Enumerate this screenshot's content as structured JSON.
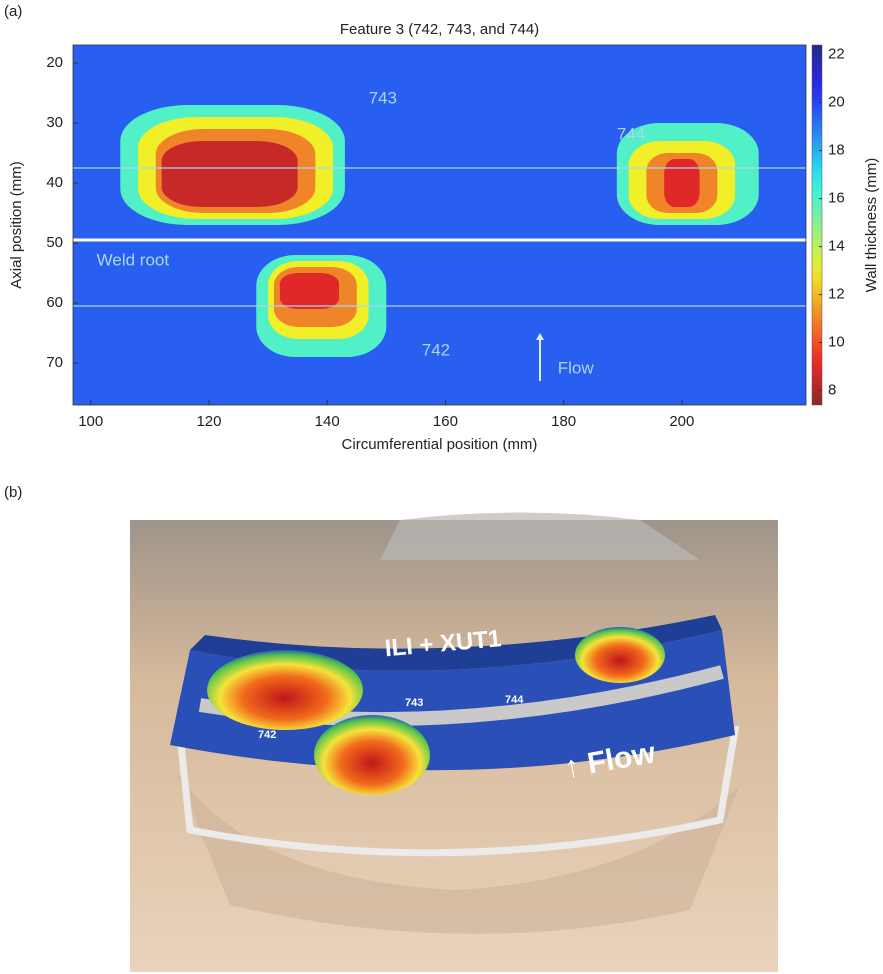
{
  "panel_labels": [
    "(a)",
    "(b)"
  ],
  "chart_data": {
    "type": "heatmap",
    "title": "Feature 3 (742, 743, and 744)",
    "x_label": "Circumferential position (mm)",
    "y_label": "Axial position (mm)",
    "xlim": [
      97,
      221
    ],
    "xticks": [
      100,
      120,
      140,
      160,
      180,
      200
    ],
    "ylim": [
      77,
      17
    ],
    "yticks": [
      20,
      30,
      40,
      50,
      60,
      70
    ],
    "colormap": "jet-reversed",
    "colorbar_label": "Wall thickness (mm)",
    "clim": [
      7.4,
      22.4
    ],
    "cticks": [
      8,
      10,
      12,
      14,
      16,
      18,
      20,
      22
    ],
    "background": 19.5,
    "regions": [
      {
        "x": [
          105,
          143
        ],
        "y": [
          27,
          47
        ],
        "value": 16
      },
      {
        "x": [
          108,
          141
        ],
        "y": [
          29,
          46
        ],
        "value": 13
      },
      {
        "x": [
          111,
          138
        ],
        "y": [
          31,
          45
        ],
        "value": 11
      },
      {
        "x": [
          112,
          135
        ],
        "y": [
          33,
          44
        ],
        "value": 8.5
      },
      {
        "x": [
          189,
          213
        ],
        "y": [
          30,
          47
        ],
        "value": 16
      },
      {
        "x": [
          191,
          209
        ],
        "y": [
          33,
          46
        ],
        "value": 13
      },
      {
        "x": [
          194,
          206
        ],
        "y": [
          35,
          45
        ],
        "value": 11
      },
      {
        "x": [
          197,
          203
        ],
        "y": [
          36,
          44
        ],
        "value": 9
      },
      {
        "x": [
          128,
          150
        ],
        "y": [
          52,
          69
        ],
        "value": 16
      },
      {
        "x": [
          130,
          147
        ],
        "y": [
          53,
          66
        ],
        "value": 13
      },
      {
        "x": [
          131,
          145
        ],
        "y": [
          54,
          64
        ],
        "value": 11
      },
      {
        "x": [
          132,
          142
        ],
        "y": [
          55,
          61
        ],
        "value": 9
      }
    ],
    "hlines": [
      37.5,
      49.5,
      60.5
    ],
    "annotations": [
      {
        "text": "743",
        "x": 147,
        "y": 26
      },
      {
        "text": "744",
        "x": 189,
        "y": 32
      },
      {
        "text": "742",
        "x": 156,
        "y": 68
      },
      {
        "text": "Weld root",
        "x": 101,
        "y": 53
      },
      {
        "text": "Flow",
        "x": 179,
        "y": 71
      }
    ],
    "arrow": {
      "x": 176,
      "y": [
        73,
        65
      ]
    }
  },
  "photo": {
    "labels": [
      "ILI + XUT1",
      "743",
      "744",
      "742",
      "↑ Flow"
    ]
  }
}
